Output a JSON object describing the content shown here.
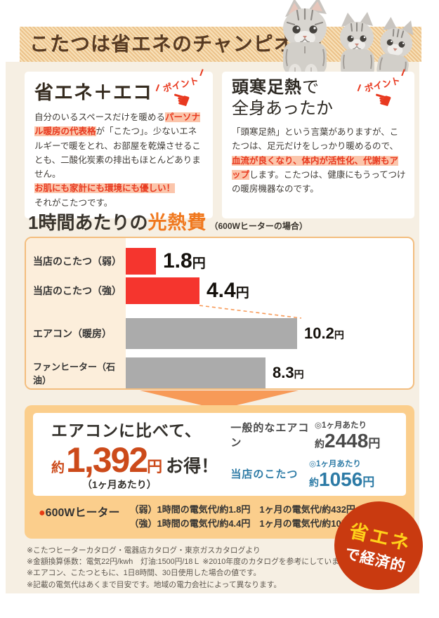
{
  "colors": {
    "page_bg": "#ffffff",
    "content_bg": "#f6efe3",
    "banner_tan": "#ecc28a",
    "title_brown": "#573a22",
    "accent_orange": "#f0781e",
    "highlight_red": "#e8391f",
    "highlight_bg": "#fbc5ab",
    "bar_red": "#f5352e",
    "bar_gray": "#ababab",
    "box_orange": "#fbce8c",
    "arrow_orange": "#f79a58",
    "big_number_orange": "#cc4a1a",
    "kotatsu_blue": "#2d7ba6",
    "badge_red": "#c93a10",
    "badge_yellow": "#ffd11a"
  },
  "banner": {
    "title": "こたつは省エネのチャンピオン！"
  },
  "point_badge": {
    "label": "ポイント",
    "hand_icon": "☚"
  },
  "left_card": {
    "title": "省エネ＋エコ",
    "seg1": "自分のいるスペースだけを暖める",
    "seg2_hl": "パーソナル暖房の代表格",
    "seg3": "が「こたつ」。少ないエネルギーで暖をとれ、お部屋を乾燥させることも、二酸化炭素の排出もほとんどありません。",
    "seg4_hl": "お肌にも家計にも環境にも優しい！",
    "seg5": "それがこたつです。"
  },
  "right_card": {
    "title_bold": "頭寒足熱",
    "title_rest": "で",
    "title_line2": "全身あったか",
    "seg1": "「頭寒足熱」という言葉がありますが、こたつは、足元だけをしっかり暖めるので、",
    "seg2_hl": "血流が良くなり、体内が活性化、代謝もアップ",
    "seg3": "します。こたつは、健康にもうってつけの暖房機器なのです。"
  },
  "chart_heading": {
    "prefix": "1時間あたりの",
    "accent": "光熱費",
    "note": "（600Wヒーターの場合）"
  },
  "chart_data": {
    "type": "bar",
    "orientation": "horizontal",
    "title": "1時間あたりの光熱費（600Wヒーターの場合）",
    "unit": "円",
    "categories": [
      "当店のこたつ（弱）",
      "当店のこたつ（強）",
      "エアコン（暖房）",
      "ファンヒーター（石油）"
    ],
    "values": [
      1.8,
      4.4,
      10.2,
      8.3
    ],
    "value_labels": [
      "1.8",
      "4.4",
      "10.2",
      "8.3"
    ],
    "bar_colors": [
      "#f5352e",
      "#f5352e",
      "#ababab",
      "#ababab"
    ],
    "xlim": [
      0,
      17
    ],
    "grid": false,
    "legend": false
  },
  "savings": {
    "lead": "エアコンに比べて、",
    "approx": "約",
    "amount": "1,392",
    "unit": "円",
    "suffix": "お得！",
    "per_month": "（1ヶ月あたり）",
    "rows": [
      {
        "label": "一般的なエアコン",
        "per": "◎1ヶ月あたり",
        "approx": "約",
        "num": "2448",
        "unit": "円",
        "theme": "dark"
      },
      {
        "label": "当店のこたつ",
        "per": "◎1ヶ月あたり",
        "approx": "約",
        "num": "1056",
        "unit": "円",
        "theme": "blue"
      }
    ]
  },
  "heater_note": {
    "bullet": "●",
    "label": "600Wヒーター",
    "lines": [
      "（弱）1時間の電気代/約1.8円　1ヶ月の電気代/約432円",
      "（強）1時間の電気代/約4.4円　1ヶ月の電気代/約1056円"
    ]
  },
  "eco_badge": {
    "line1": "省エネ",
    "line2": "で経済的"
  },
  "footnotes": [
    "※こたつヒーターカタログ・電器店カタログ・東京ガスカタログより",
    "※金額換算係数：電気22円/kwh　灯油:1500円/18Ｌ ※2010年度のカタログを参考にしています。",
    "※エアコン、こたつともに、1日8時間、30日使用した場合の値です。",
    "※記載の電気代はあくまで目安です。地域の電力会社によって異なります。"
  ]
}
